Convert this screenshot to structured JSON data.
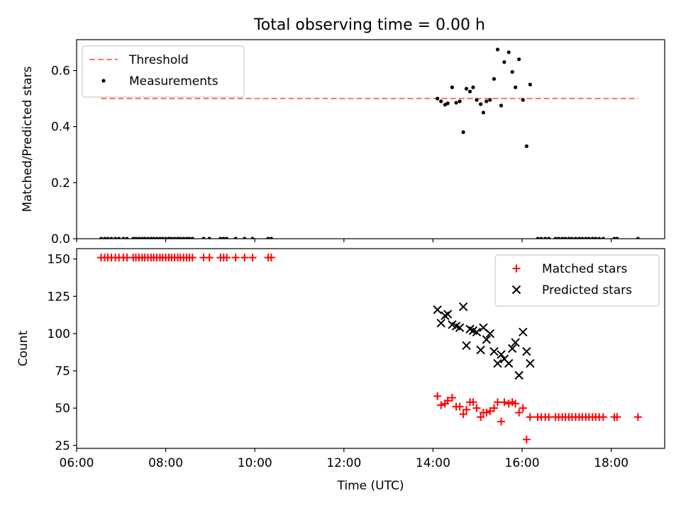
{
  "title": "Total observing time = 0.00 h",
  "chart_data": [
    {
      "panel": "top",
      "type": "scatter",
      "ylabel": "Matched/Predicted stars",
      "ylim": [
        0,
        0.71
      ],
      "yticks": [
        0.0,
        0.2,
        0.4,
        0.6
      ],
      "xlim": [
        6.0,
        19.2
      ],
      "threshold": {
        "name": "Threshold",
        "value": 0.5,
        "x_range": [
          6.55,
          18.6
        ],
        "color": "#ff7070",
        "style": "dashed"
      },
      "series": [
        {
          "name": "Measurements",
          "color": "#000000",
          "marker": "dot",
          "points": [
            [
              6.55,
              0
            ],
            [
              6.63,
              0
            ],
            [
              6.7,
              0
            ],
            [
              6.78,
              0
            ],
            [
              6.87,
              0
            ],
            [
              6.95,
              0
            ],
            [
              7.05,
              0
            ],
            [
              7.13,
              0
            ],
            [
              7.27,
              0
            ],
            [
              7.33,
              0
            ],
            [
              7.4,
              0
            ],
            [
              7.47,
              0
            ],
            [
              7.53,
              0
            ],
            [
              7.6,
              0
            ],
            [
              7.67,
              0
            ],
            [
              7.73,
              0
            ],
            [
              7.8,
              0
            ],
            [
              7.87,
              0
            ],
            [
              7.93,
              0
            ],
            [
              8.0,
              0
            ],
            [
              8.07,
              0
            ],
            [
              8.13,
              0
            ],
            [
              8.2,
              0
            ],
            [
              8.27,
              0
            ],
            [
              8.33,
              0
            ],
            [
              8.4,
              0
            ],
            [
              8.47,
              0
            ],
            [
              8.53,
              0
            ],
            [
              8.6,
              0
            ],
            [
              8.85,
              0
            ],
            [
              8.98,
              0
            ],
            [
              9.23,
              0
            ],
            [
              9.3,
              0
            ],
            [
              9.37,
              0
            ],
            [
              9.57,
              0
            ],
            [
              9.77,
              0
            ],
            [
              9.95,
              0
            ],
            [
              10.3,
              0
            ],
            [
              10.37,
              0
            ],
            [
              14.1,
              0.5
            ],
            [
              14.18,
              0.49
            ],
            [
              14.27,
              0.478
            ],
            [
              14.33,
              0.483
            ],
            [
              14.43,
              0.54
            ],
            [
              14.52,
              0.485
            ],
            [
              14.6,
              0.49
            ],
            [
              14.68,
              0.38
            ],
            [
              14.75,
              0.535
            ],
            [
              14.83,
              0.525
            ],
            [
              14.9,
              0.54
            ],
            [
              14.98,
              0.495
            ],
            [
              15.07,
              0.48
            ],
            [
              15.13,
              0.45
            ],
            [
              15.2,
              0.49
            ],
            [
              15.28,
              0.495
            ],
            [
              15.37,
              0.57
            ],
            [
              15.45,
              0.675
            ],
            [
              15.53,
              0.475
            ],
            [
              15.6,
              0.63
            ],
            [
              15.7,
              0.665
            ],
            [
              15.78,
              0.595
            ],
            [
              15.85,
              0.54
            ],
            [
              15.93,
              0.64
            ],
            [
              16.02,
              0.495
            ],
            [
              16.1,
              0.33
            ],
            [
              16.18,
              0.55
            ],
            [
              16.35,
              0
            ],
            [
              16.43,
              0
            ],
            [
              16.52,
              0
            ],
            [
              16.6,
              0
            ],
            [
              16.75,
              0
            ],
            [
              16.82,
              0
            ],
            [
              16.9,
              0
            ],
            [
              16.97,
              0
            ],
            [
              17.05,
              0
            ],
            [
              17.12,
              0
            ],
            [
              17.2,
              0
            ],
            [
              17.28,
              0
            ],
            [
              17.35,
              0
            ],
            [
              17.43,
              0
            ],
            [
              17.5,
              0
            ],
            [
              17.58,
              0
            ],
            [
              17.65,
              0
            ],
            [
              17.73,
              0
            ],
            [
              17.82,
              0
            ],
            [
              18.07,
              0
            ],
            [
              18.13,
              0
            ],
            [
              18.6,
              0
            ]
          ]
        }
      ],
      "legend": "top-left"
    },
    {
      "panel": "bottom",
      "type": "scatter",
      "xlabel": "Time (UTC)",
      "ylabel": "Count",
      "ylim": [
        23,
        157
      ],
      "yticks": [
        25,
        50,
        75,
        100,
        125,
        150
      ],
      "xlim": [
        6.0,
        19.2
      ],
      "xticks": [
        6,
        8,
        10,
        12,
        14,
        16,
        18
      ],
      "xticklabels": [
        "06:00",
        "08:00",
        "10:00",
        "12:00",
        "14:00",
        "16:00",
        "18:00"
      ],
      "series": [
        {
          "name": "Matched stars",
          "color": "#ff0000",
          "marker": "plus",
          "points": [
            [
              6.55,
              151
            ],
            [
              6.63,
              151
            ],
            [
              6.7,
              151
            ],
            [
              6.78,
              151
            ],
            [
              6.87,
              151
            ],
            [
              6.95,
              151
            ],
            [
              7.05,
              151
            ],
            [
              7.13,
              151
            ],
            [
              7.27,
              151
            ],
            [
              7.33,
              151
            ],
            [
              7.4,
              151
            ],
            [
              7.47,
              151
            ],
            [
              7.53,
              151
            ],
            [
              7.6,
              151
            ],
            [
              7.67,
              151
            ],
            [
              7.73,
              151
            ],
            [
              7.8,
              151
            ],
            [
              7.87,
              151
            ],
            [
              7.93,
              151
            ],
            [
              8.0,
              151
            ],
            [
              8.07,
              151
            ],
            [
              8.13,
              151
            ],
            [
              8.2,
              151
            ],
            [
              8.27,
              151
            ],
            [
              8.33,
              151
            ],
            [
              8.4,
              151
            ],
            [
              8.47,
              151
            ],
            [
              8.53,
              151
            ],
            [
              8.6,
              151
            ],
            [
              8.85,
              151
            ],
            [
              8.98,
              151
            ],
            [
              9.23,
              151
            ],
            [
              9.3,
              151
            ],
            [
              9.37,
              151
            ],
            [
              9.57,
              151
            ],
            [
              9.77,
              151
            ],
            [
              9.95,
              151
            ],
            [
              10.3,
              151
            ],
            [
              10.37,
              151
            ],
            [
              14.1,
              58
            ],
            [
              14.18,
              52
            ],
            [
              14.27,
              53
            ],
            [
              14.33,
              55
            ],
            [
              14.43,
              57
            ],
            [
              14.52,
              51
            ],
            [
              14.6,
              51
            ],
            [
              14.68,
              46
            ],
            [
              14.75,
              49
            ],
            [
              14.83,
              54
            ],
            [
              14.9,
              54
            ],
            [
              14.98,
              50
            ],
            [
              15.07,
              44
            ],
            [
              15.13,
              47
            ],
            [
              15.2,
              47
            ],
            [
              15.28,
              48
            ],
            [
              15.37,
              50
            ],
            [
              15.45,
              54
            ],
            [
              15.53,
              41
            ],
            [
              15.6,
              54
            ],
            [
              15.7,
              53
            ],
            [
              15.78,
              54
            ],
            [
              15.85,
              53
            ],
            [
              15.93,
              47
            ],
            [
              16.02,
              50
            ],
            [
              16.1,
              29
            ],
            [
              16.18,
              44
            ],
            [
              16.35,
              44
            ],
            [
              16.43,
              44
            ],
            [
              16.52,
              44
            ],
            [
              16.6,
              44
            ],
            [
              16.75,
              44
            ],
            [
              16.82,
              44
            ],
            [
              16.9,
              44
            ],
            [
              16.97,
              44
            ],
            [
              17.05,
              44
            ],
            [
              17.12,
              44
            ],
            [
              17.2,
              44
            ],
            [
              17.28,
              44
            ],
            [
              17.35,
              44
            ],
            [
              17.43,
              44
            ],
            [
              17.5,
              44
            ],
            [
              17.58,
              44
            ],
            [
              17.65,
              44
            ],
            [
              17.73,
              44
            ],
            [
              17.82,
              44
            ],
            [
              18.07,
              44
            ],
            [
              18.13,
              44
            ],
            [
              18.6,
              44
            ]
          ]
        },
        {
          "name": "Predicted stars",
          "color": "#000000",
          "marker": "x",
          "points": [
            [
              14.1,
              116
            ],
            [
              14.18,
              107
            ],
            [
              14.27,
              112
            ],
            [
              14.33,
              113
            ],
            [
              14.43,
              106
            ],
            [
              14.52,
              105
            ],
            [
              14.6,
              104
            ],
            [
              14.68,
              118
            ],
            [
              14.75,
              92
            ],
            [
              14.83,
              103
            ],
            [
              14.9,
              102
            ],
            [
              14.98,
              101
            ],
            [
              15.07,
              89
            ],
            [
              15.13,
              104
            ],
            [
              15.2,
              96
            ],
            [
              15.28,
              100
            ],
            [
              15.37,
              88
            ],
            [
              15.45,
              80
            ],
            [
              15.53,
              86
            ],
            [
              15.6,
              83
            ],
            [
              15.7,
              80
            ],
            [
              15.78,
              90
            ],
            [
              15.85,
              94
            ],
            [
              15.93,
              72
            ],
            [
              16.02,
              101
            ],
            [
              16.1,
              88
            ],
            [
              16.18,
              80
            ]
          ]
        }
      ],
      "legend": "top-right"
    }
  ]
}
